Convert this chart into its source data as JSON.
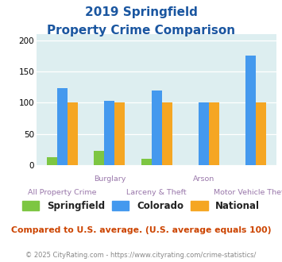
{
  "title_line1": "2019 Springfield",
  "title_line2": "Property Crime Comparison",
  "categories": [
    "All Property Crime",
    "Burglary",
    "Larceny & Theft",
    "Arson",
    "Motor Vehicle Theft"
  ],
  "series": {
    "Springfield": [
      12,
      23,
      10,
      0,
      0
    ],
    "Colorado": [
      123,
      103,
      120,
      100,
      175
    ],
    "National": [
      100,
      100,
      100,
      100,
      100
    ]
  },
  "colors": {
    "Springfield": "#7dc642",
    "Colorado": "#4499ee",
    "National": "#f5a623"
  },
  "ylim": [
    0,
    210
  ],
  "yticks": [
    0,
    50,
    100,
    150,
    200
  ],
  "label_top_row": [
    "Burglary",
    "Arson"
  ],
  "label_bottom_row": [
    "All Property Crime",
    "Larceny & Theft",
    "Motor Vehicle Theft"
  ],
  "plot_bg": "#ddeef0",
  "title_color": "#1a56a0",
  "label_color": "#9977aa",
  "footnote_color": "#cc4400",
  "credit_color": "#888888",
  "footnote": "Compared to U.S. average. (U.S. average equals 100)",
  "credit": "© 2025 CityRating.com - https://www.cityrating.com/crime-statistics/",
  "bar_width": 0.22
}
